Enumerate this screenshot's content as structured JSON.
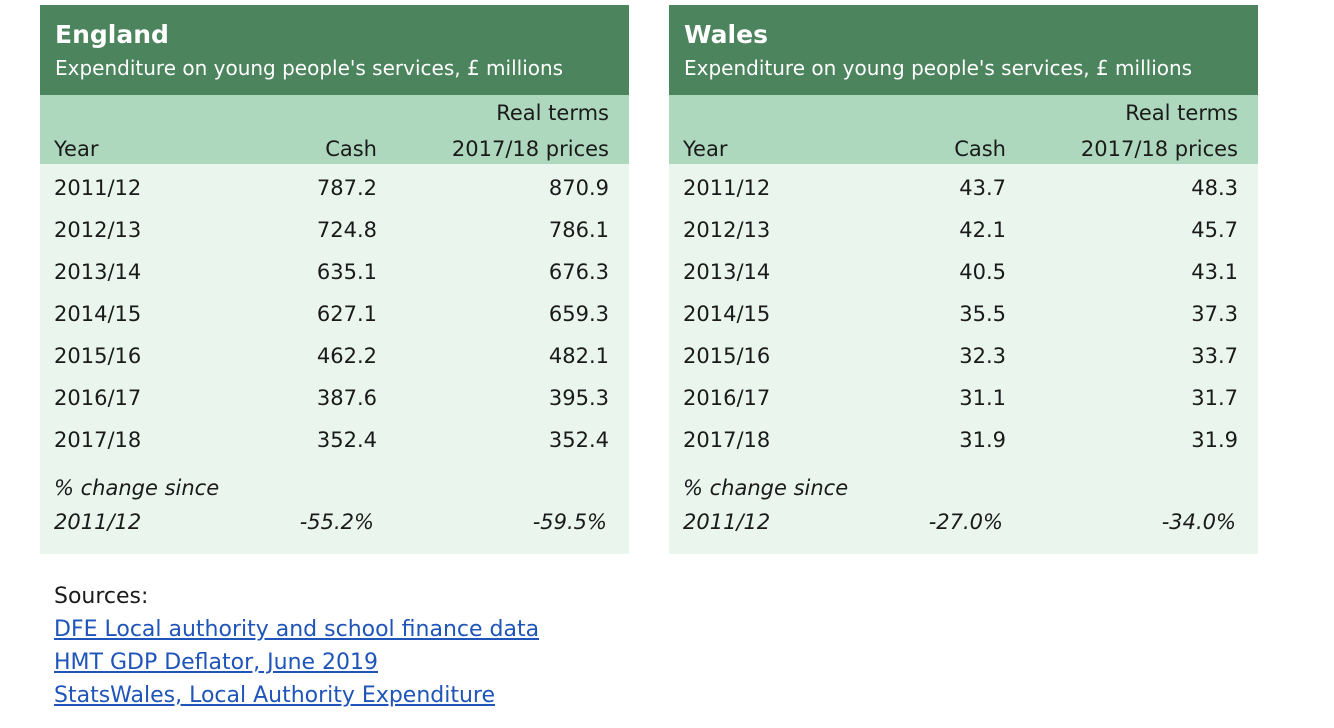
{
  "england": {
    "title": "England",
    "subtitle": "Expenditure on young people's services, £ millions",
    "headers": {
      "year": "Year",
      "cash": "Cash",
      "real_line1": "Real terms",
      "real_line2": "2017/18 prices"
    },
    "rows": [
      {
        "year": "2011/12",
        "cash": "787.2",
        "real": "870.9"
      },
      {
        "year": "2012/13",
        "cash": "724.8",
        "real": "786.1"
      },
      {
        "year": "2013/14",
        "cash": "635.1",
        "real": "676.3"
      },
      {
        "year": "2014/15",
        "cash": "627.1",
        "real": "659.3"
      },
      {
        "year": "2015/16",
        "cash": "462.2",
        "real": "482.1"
      },
      {
        "year": "2016/17",
        "cash": "387.6",
        "real": "395.3"
      },
      {
        "year": "2017/18",
        "cash": "352.4",
        "real": "352.4"
      }
    ],
    "change": {
      "label_line1": "% change since",
      "label_line2": "2011/12",
      "cash": "-55.2%",
      "real": "-59.5%"
    }
  },
  "wales": {
    "title": "Wales",
    "subtitle": "Expenditure on young people's services, £ millions",
    "headers": {
      "year": "Year",
      "cash": "Cash",
      "real_line1": "Real terms",
      "real_line2": "2017/18 prices"
    },
    "rows": [
      {
        "year": "2011/12",
        "cash": "43.7",
        "real": "48.3"
      },
      {
        "year": "2012/13",
        "cash": "42.1",
        "real": "45.7"
      },
      {
        "year": "2013/14",
        "cash": "40.5",
        "real": "43.1"
      },
      {
        "year": "2014/15",
        "cash": "35.5",
        "real": "37.3"
      },
      {
        "year": "2015/16",
        "cash": "32.3",
        "real": "33.7"
      },
      {
        "year": "2016/17",
        "cash": "31.1",
        "real": "31.7"
      },
      {
        "year": "2017/18",
        "cash": "31.9",
        "real": "31.9"
      }
    ],
    "change": {
      "label_line1": "% change since",
      "label_line2": "2011/12",
      "cash": "-27.0%",
      "real": "-34.0%"
    }
  },
  "sources": {
    "label": "Sources:",
    "links": [
      "DFE Local authority and school finance data",
      "HMT GDP Deflator, June 2019",
      "StatsWales, Local Authority Expenditure"
    ]
  },
  "colors": {
    "header_bg": "#4c845e",
    "colhead_bg": "#aed8bd",
    "body_bg": "#eaf5ee",
    "link": "#1f54b8"
  }
}
